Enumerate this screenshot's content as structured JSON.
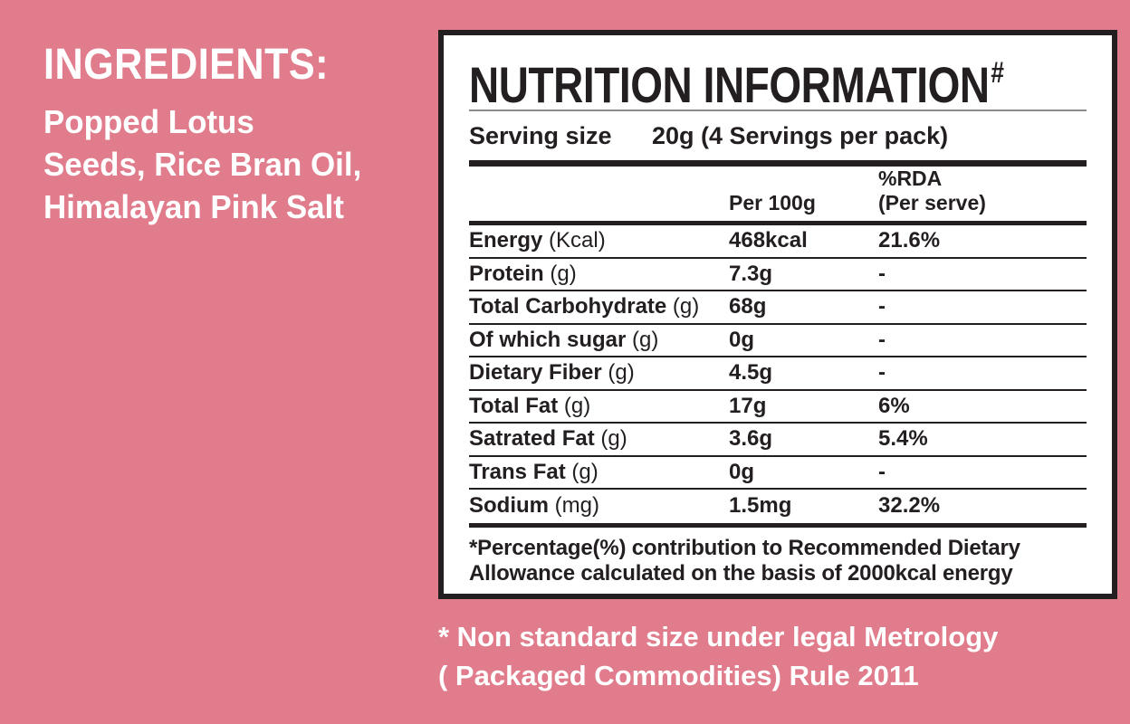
{
  "colors": {
    "background": "#E07C8B",
    "ink": "#231F20",
    "panel_bg": "#FFFFFF",
    "title_rule": "#8C8C8C",
    "light_text": "#FFFFFF"
  },
  "ingredients": {
    "heading": "INGREDIENTS:",
    "lines": [
      "Popped Lotus",
      "Seeds, Rice Bran Oil,",
      "Himalayan Pink Salt"
    ]
  },
  "panel": {
    "title": "NUTRITION INFORMATION",
    "title_superscript": "#",
    "serving": {
      "label": "Serving size",
      "value": "20g (4 Servings per pack)"
    },
    "columns": {
      "per100g": "Per 100g",
      "rda_line1": "%RDA",
      "rda_line2": "(Per serve)"
    },
    "rows": [
      {
        "name": "Energy",
        "unit": "(Kcal)",
        "per100g": "468kcal",
        "rda": "21.6%"
      },
      {
        "name": "Protein",
        "unit": "(g)",
        "per100g": "7.3g",
        "rda": "-"
      },
      {
        "name": "Total Carbohydrate",
        "unit": "(g)",
        "per100g": "68g",
        "rda": "-"
      },
      {
        "name": "Of which sugar",
        "unit": "(g)",
        "per100g": "0g",
        "rda": "-"
      },
      {
        "name": "Dietary Fiber",
        "unit": "(g)",
        "per100g": "4.5g",
        "rda": "-"
      },
      {
        "name": "Total Fat",
        "unit": "(g)",
        "per100g": "17g",
        "rda": "6%"
      },
      {
        "name": "Satrated Fat",
        "unit": "(g)",
        "per100g": "3.6g",
        "rda": "5.4%"
      },
      {
        "name": "Trans Fat",
        "unit": "(g)",
        "per100g": "0g",
        "rda": "-"
      },
      {
        "name": "Sodium",
        "unit": "(mg)",
        "per100g": "1.5mg",
        "rda": "32.2%"
      }
    ],
    "footnote_line1": "*Percentage(%) contribution to Recommended Dietary",
    "footnote_line2": "Allowance calculated on the basis of 2000kcal energy"
  },
  "disclaimer": {
    "line1": "* Non standard size under legal Metrology",
    "line2": "( Packaged Commodities) Rule 2011"
  }
}
